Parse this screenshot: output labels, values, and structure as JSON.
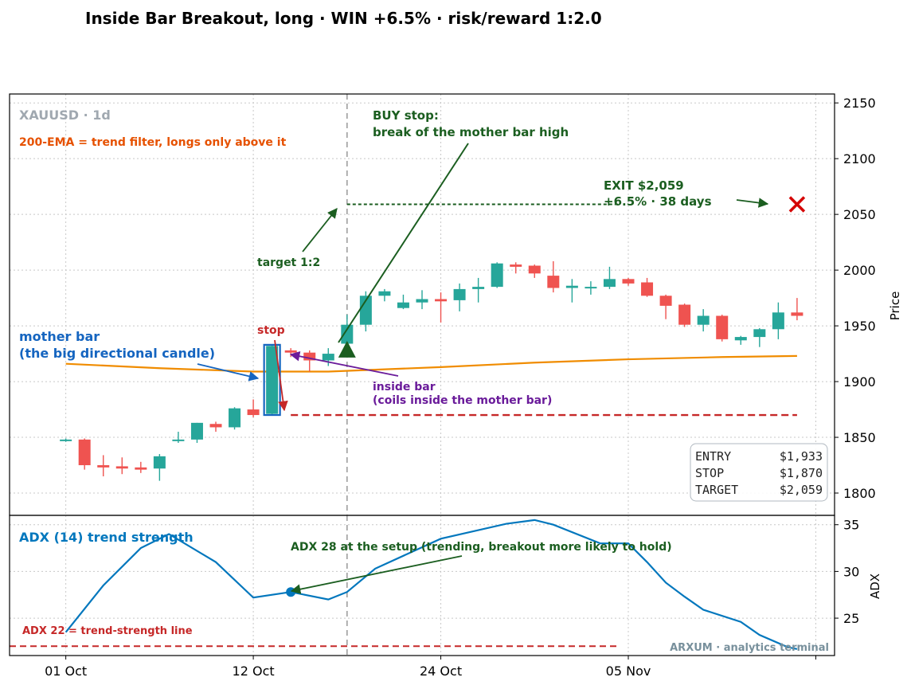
{
  "title": "Inside Bar Breakout, long · WIN +6.5% · risk/reward 1:2.0",
  "colors": {
    "up": "#26a69a",
    "down": "#ef5350",
    "ema": "#f08c00",
    "adx": "#1f77b4",
    "stop": "#c62828",
    "target": "#1b5e20",
    "mother": "#1565c0",
    "inside": "#6a1b9a",
    "grey": "#9e9e9e"
  },
  "chart_data": [
    {
      "type": "candlestick",
      "symbol_label": "XAUUSD · 1d",
      "ylabel": "Price",
      "ylim": [
        1780,
        2158
      ],
      "yticks": [
        1800,
        1850,
        1900,
        1950,
        2000,
        2050,
        2100,
        2150
      ],
      "x_tick_labels": [
        {
          "label": "01 Oct",
          "x": 0
        },
        {
          "label": "12 Oct",
          "x": 10
        },
        {
          "label": "24 Oct",
          "x": 20
        },
        {
          "label": "05 Nov",
          "x": 30
        },
        {
          "label": "",
          "x": 40
        }
      ],
      "xlim": [
        -3,
        41
      ],
      "grid": true,
      "candles": [
        {
          "x": 0,
          "o": 1848,
          "h": 1849,
          "l": 1846,
          "c": 1848
        },
        {
          "x": 1,
          "o": 1848,
          "h": 1849,
          "l": 1821,
          "c": 1825
        },
        {
          "x": 2,
          "o": 1825,
          "h": 1834,
          "l": 1815,
          "c": 1823
        },
        {
          "x": 3,
          "o": 1824,
          "h": 1832,
          "l": 1817,
          "c": 1822
        },
        {
          "x": 4,
          "o": 1823,
          "h": 1828,
          "l": 1818,
          "c": 1821
        },
        {
          "x": 5,
          "o": 1822,
          "h": 1835,
          "l": 1811,
          "c": 1833
        },
        {
          "x": 6,
          "o": 1847,
          "h": 1855,
          "l": 1845,
          "c": 1848
        },
        {
          "x": 7,
          "o": 1848,
          "h": 1863,
          "l": 1845,
          "c": 1863
        },
        {
          "x": 8,
          "o": 1862,
          "h": 1864,
          "l": 1855,
          "c": 1859
        },
        {
          "x": 9,
          "o": 1859,
          "h": 1877,
          "l": 1857,
          "c": 1876
        },
        {
          "x": 10,
          "o": 1875,
          "h": 1884,
          "l": 1868,
          "c": 1870
        },
        {
          "x": 11,
          "o": 1871,
          "h": 1933,
          "l": 1870,
          "c": 1932
        },
        {
          "x": 12,
          "o": 1928,
          "h": 1930,
          "l": 1922,
          "c": 1926
        },
        {
          "x": 13,
          "o": 1926,
          "h": 1928,
          "l": 1909,
          "c": 1919
        },
        {
          "x": 14,
          "o": 1919,
          "h": 1930,
          "l": 1914,
          "c": 1925
        },
        {
          "x": 15,
          "o": 1934,
          "h": 1960,
          "l": 1932,
          "c": 1951
        },
        {
          "x": 16,
          "o": 1951,
          "h": 1981,
          "l": 1945,
          "c": 1977
        },
        {
          "x": 17,
          "o": 1977,
          "h": 1983,
          "l": 1972,
          "c": 1981
        },
        {
          "x": 18,
          "o": 1966,
          "h": 1978,
          "l": 1965,
          "c": 1971
        },
        {
          "x": 19,
          "o": 1971,
          "h": 1982,
          "l": 1965,
          "c": 1974
        },
        {
          "x": 20,
          "o": 1974,
          "h": 1980,
          "l": 1953,
          "c": 1972
        },
        {
          "x": 21,
          "o": 1973,
          "h": 1988,
          "l": 1963,
          "c": 1983
        },
        {
          "x": 22,
          "o": 1983,
          "h": 1993,
          "l": 1971,
          "c": 1985
        },
        {
          "x": 23,
          "o": 1985,
          "h": 2007,
          "l": 1984,
          "c": 2006
        },
        {
          "x": 24,
          "o": 2005,
          "h": 2007,
          "l": 1997,
          "c": 2003
        },
        {
          "x": 25,
          "o": 2004,
          "h": 2005,
          "l": 1993,
          "c": 1997
        },
        {
          "x": 26,
          "o": 1995,
          "h": 2008,
          "l": 1980,
          "c": 1984
        },
        {
          "x": 27,
          "o": 1984,
          "h": 1992,
          "l": 1971,
          "c": 1986
        },
        {
          "x": 28,
          "o": 1985,
          "h": 1990,
          "l": 1978,
          "c": 1985
        },
        {
          "x": 29,
          "o": 1985,
          "h": 2003,
          "l": 1983,
          "c": 1992
        },
        {
          "x": 30,
          "o": 1992,
          "h": 1993,
          "l": 1986,
          "c": 1988
        },
        {
          "x": 31,
          "o": 1989,
          "h": 1993,
          "l": 1976,
          "c": 1977
        },
        {
          "x": 32,
          "o": 1977,
          "h": 1978,
          "l": 1956,
          "c": 1968
        },
        {
          "x": 33,
          "o": 1969,
          "h": 1970,
          "l": 1949,
          "c": 1951
        },
        {
          "x": 34,
          "o": 1951,
          "h": 1965,
          "l": 1945,
          "c": 1959
        },
        {
          "x": 35,
          "o": 1959,
          "h": 1960,
          "l": 1936,
          "c": 1938
        },
        {
          "x": 36,
          "o": 1937,
          "h": 1941,
          "l": 1933,
          "c": 1940
        },
        {
          "x": 37,
          "o": 1940,
          "h": 1948,
          "l": 1931,
          "c": 1947
        },
        {
          "x": 38,
          "o": 1947,
          "h": 1971,
          "l": 1938,
          "c": 1962
        },
        {
          "x": 39,
          "o": 1962,
          "h": 1975,
          "l": 1955,
          "c": 1959
        }
      ],
      "ema200": {
        "label": "200-EMA = trend filter, longs only above it",
        "x": [
          0,
          5,
          10,
          14,
          20,
          25,
          30,
          35,
          39
        ],
        "y": [
          1916,
          1912,
          1909,
          1909,
          1913,
          1917,
          1920,
          1922,
          1923
        ]
      },
      "levels": {
        "entry": 1933,
        "stop": 1870,
        "target": 2059,
        "exit": 2059,
        "setup_x": 15,
        "stop_x_range": [
          12,
          39
        ],
        "target_x_range": [
          15,
          29.5
        ]
      },
      "exit_point": {
        "x": 39,
        "y": 2059
      },
      "entry_marker": {
        "x": 15,
        "y": 1928
      },
      "mother_bar_x": 11,
      "inside_bar_x": 12,
      "annotations": {
        "buy_stop_title": "BUY stop:",
        "buy_stop_text": "break of the mother bar high",
        "target": "target 1:2",
        "stop": "stop",
        "mother_title": "mother bar",
        "mother_text": "(the big directional candle)",
        "inside_title": "inside bar",
        "inside_text": "(coils inside the mother bar)",
        "exit_title": "EXIT $2,059",
        "exit_text": "+6.5%  ·  38 days"
      },
      "summary_box": [
        {
          "k": "ENTRY",
          "v": "$1,933"
        },
        {
          "k": "STOP",
          "v": "$1,870"
        },
        {
          "k": "TARGET",
          "v": "$2,059"
        }
      ]
    },
    {
      "type": "line",
      "title": "ADX (14) trend strength",
      "ylabel": "ADX",
      "ylim": [
        21,
        36
      ],
      "yticks": [
        25,
        30,
        35
      ],
      "grid": true,
      "series": [
        {
          "x": [
            0,
            2,
            4,
            5.5,
            8,
            10,
            12,
            14,
            15,
            16.5,
            20,
            23.5,
            25,
            26,
            28.5,
            30,
            31,
            32,
            33,
            34,
            36,
            37,
            38.5,
            39
          ],
          "values": [
            23.5,
            28.5,
            32.5,
            34,
            31,
            27.2,
            27.8,
            27,
            27.8,
            30.3,
            33.5,
            35.1,
            35.5,
            35,
            33,
            33,
            31,
            28.8,
            27.3,
            25.9,
            24.6,
            23.2,
            21.9,
            21.7
          ]
        }
      ],
      "setup_point": {
        "x": 12,
        "y": 27.8
      },
      "threshold": {
        "value": 22,
        "label": "ADX 22 = trend-strength line",
        "x_range": [
          -3,
          29.5
        ]
      },
      "setup_annotation": "ADX 28 at the setup (trending, breakout more likely to hold)"
    }
  ],
  "watermark": "ARXUM · analytics terminal"
}
